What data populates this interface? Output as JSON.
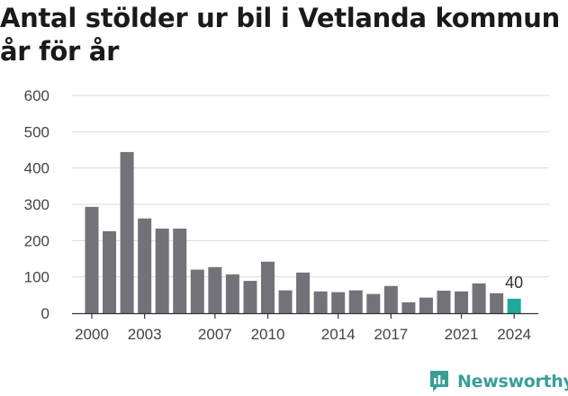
{
  "chart_data": {
    "type": "bar",
    "title_lines": [
      "Antal stölder ur bil i Vetlanda kommun",
      "år för år"
    ],
    "years": [
      2000,
      2001,
      2002,
      2003,
      2004,
      2005,
      2006,
      2007,
      2008,
      2009,
      2010,
      2011,
      2012,
      2013,
      2014,
      2015,
      2016,
      2017,
      2018,
      2019,
      2020,
      2021,
      2022,
      2023,
      2024
    ],
    "values": [
      293,
      226,
      444,
      261,
      233,
      233,
      120,
      127,
      107,
      89,
      142,
      63,
      112,
      60,
      58,
      63,
      53,
      75,
      30,
      43,
      62,
      60,
      82,
      55,
      40
    ],
    "x_tick_labels": [
      "2000",
      "2003",
      "2007",
      "2010",
      "2014",
      "2017",
      "2021",
      "2024"
    ],
    "y_ticks": [
      "0",
      "100",
      "200",
      "300",
      "400",
      "500",
      "600"
    ],
    "ylim": [
      0,
      600
    ],
    "highlight_year": 2024,
    "highlight_label": "40",
    "xlabel": "",
    "ylabel": "",
    "grid": "horizontal",
    "colors": {
      "bar": "#737278",
      "highlight": "#1fa89b",
      "grid": "#d9d9d9",
      "axis": "#333333"
    }
  },
  "brand": {
    "name": "Newsworthy",
    "icon": "newsworthy-logo-icon",
    "color": "#3a9e97"
  }
}
